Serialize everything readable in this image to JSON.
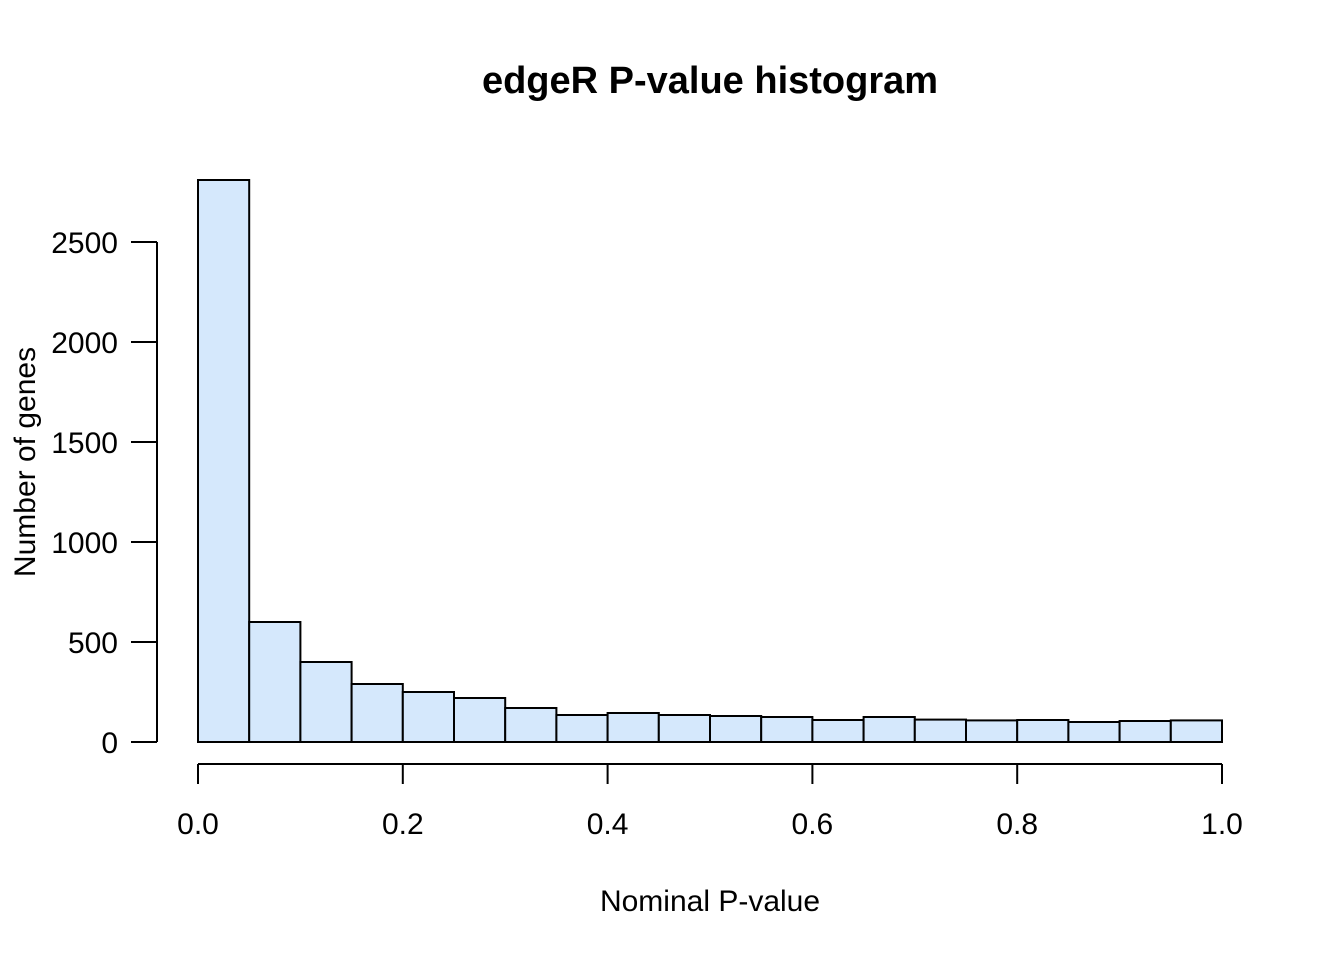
{
  "chart_data": {
    "type": "bar",
    "title": "edgeR P-value histogram",
    "xlabel": "Nominal P-value",
    "ylabel": "Number of genes",
    "bin_edges": [
      0.0,
      0.05,
      0.1,
      0.15,
      0.2,
      0.25,
      0.3,
      0.35,
      0.4,
      0.45,
      0.5,
      0.55,
      0.6,
      0.65,
      0.7,
      0.75,
      0.8,
      0.85,
      0.9,
      0.95,
      1.0
    ],
    "values": [
      2810,
      600,
      400,
      290,
      250,
      220,
      170,
      135,
      145,
      135,
      130,
      125,
      110,
      125,
      112,
      108,
      110,
      100,
      105,
      108
    ],
    "xlim": [
      0.0,
      1.0
    ],
    "ylim": [
      0,
      2810
    ],
    "x_ticks": [
      "0.0",
      "0.2",
      "0.4",
      "0.6",
      "0.8",
      "1.0"
    ],
    "y_ticks": [
      "0",
      "500",
      "1000",
      "1500",
      "2000",
      "2500"
    ],
    "bar_color": "#d5e8fc",
    "grid": false
  }
}
